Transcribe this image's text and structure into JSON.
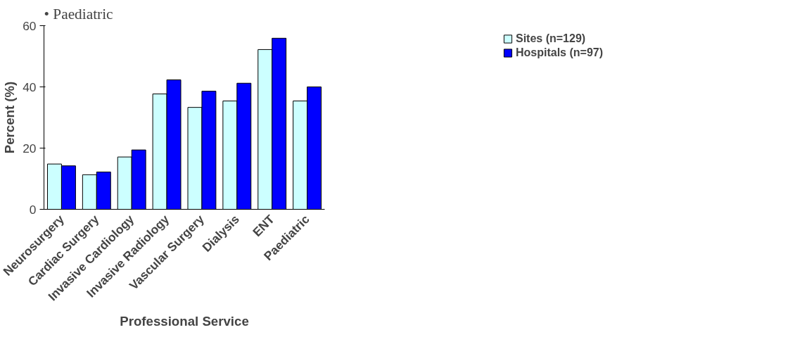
{
  "chart_data": {
    "type": "bar",
    "xlabel": "Professional Service",
    "ylabel": "Percent (%)",
    "annotations": [
      "• Paediatric"
    ],
    "categories": [
      "Neurosurgery",
      "Cardiac Surgery",
      "Invasive Cardiology",
      "Invasive Radiology",
      "Vascular Surgery",
      "Dialysis",
      "ENT",
      "Paediatric"
    ],
    "series": [
      {
        "name": "Sites (n=129)",
        "color": "#ccffff",
        "values": [
          14.8,
          11.3,
          17.1,
          37.7,
          33.3,
          35.4,
          52.2,
          35.4
        ]
      },
      {
        "name": "Hospitals (n=97)",
        "color": "#0000ff",
        "values": [
          14.2,
          12.2,
          19.4,
          42.3,
          38.6,
          41.2,
          55.9,
          40.0
        ]
      }
    ],
    "ylim": [
      0,
      60
    ],
    "yticks": [
      0,
      20,
      40,
      60
    ],
    "grid": false,
    "legend": "top right"
  }
}
